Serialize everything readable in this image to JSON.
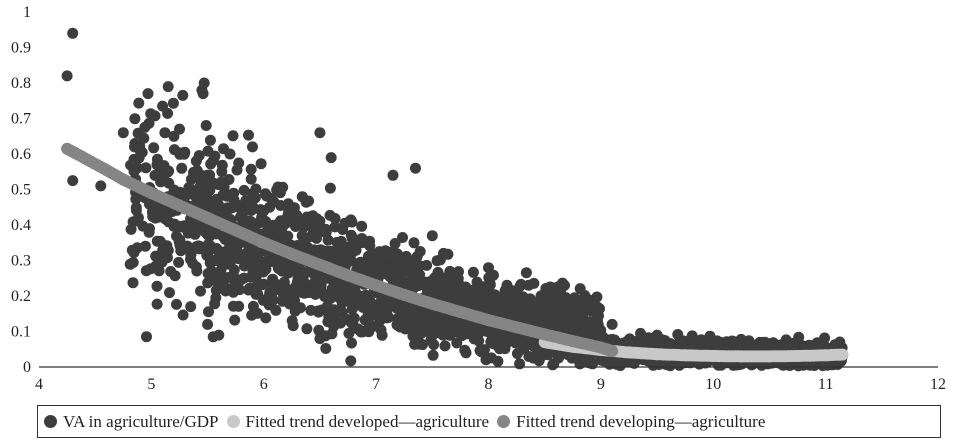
{
  "chart_data": {
    "type": "scatter",
    "title": "",
    "xlabel": "",
    "ylabel": "",
    "xlim": [
      4,
      12
    ],
    "ylim": [
      0,
      1
    ],
    "x_ticks": [
      "4",
      "5",
      "6",
      "7",
      "8",
      "9",
      "10",
      "11",
      "12"
    ],
    "y_ticks": [
      "0",
      "0.1",
      "0.2",
      "0.3",
      "0.4",
      "0.5",
      "0.6",
      "0.7",
      "0.8",
      "0.9",
      "1"
    ],
    "grid": false,
    "legend_position": "bottom",
    "colors": {
      "scatter": "#3d3d3d",
      "developed": "#c8c8c8",
      "developing": "#858585"
    },
    "series": [
      {
        "name": "VA in agriculture/GDP",
        "kind": "scatter",
        "approx_count": 2600,
        "points": [
          [
            4.25,
            0.82
          ],
          [
            4.3,
            0.94
          ],
          [
            4.3,
            0.525
          ],
          [
            4.55,
            0.51
          ],
          [
            4.75,
            0.66
          ],
          [
            4.85,
            0.62
          ],
          [
            4.9,
            0.61
          ],
          [
            4.97,
            0.77
          ],
          [
            5.05,
            0.57
          ],
          [
            5.1,
            0.735
          ],
          [
            5.12,
            0.66
          ],
          [
            5.15,
            0.79
          ],
          [
            5.2,
            0.65
          ],
          [
            5.25,
            0.67
          ],
          [
            5.28,
            0.765
          ],
          [
            5.4,
            0.58
          ],
          [
            5.45,
            0.78
          ],
          [
            5.46,
            0.77
          ],
          [
            5.47,
            0.8
          ],
          [
            5.5,
            0.54
          ],
          [
            5.55,
            0.085
          ],
          [
            5.6,
            0.09
          ],
          [
            5.35,
            0.17
          ],
          [
            5.5,
            0.12
          ],
          [
            5.7,
            0.6
          ],
          [
            5.9,
            0.62
          ],
          [
            6.5,
            0.66
          ],
          [
            6.6,
            0.59
          ],
          [
            7.35,
            0.56
          ],
          [
            7.15,
            0.54
          ],
          [
            7.5,
            0.37
          ],
          [
            7.6,
            0.32
          ],
          [
            8.0,
            0.22
          ],
          [
            8.4,
            0.18
          ],
          [
            8.7,
            0.17
          ],
          [
            9.1,
            0.12
          ],
          [
            9.5,
            0.09
          ],
          [
            10.2,
            0.07
          ],
          [
            10.5,
            0.06
          ],
          [
            11.1,
            0.03
          ],
          [
            6.5,
            0.08
          ],
          [
            7.8,
            0.04
          ],
          [
            8.8,
            0.03
          ],
          [
            9.7,
            0.01
          ],
          [
            10.8,
            0.005
          ]
        ]
      },
      {
        "name": "Fitted trend developed—agriculture",
        "kind": "fit",
        "points": [
          [
            8.5,
            0.07
          ],
          [
            8.75,
            0.057
          ],
          [
            9.0,
            0.048
          ],
          [
            9.25,
            0.041
          ],
          [
            9.5,
            0.036
          ],
          [
            9.75,
            0.033
          ],
          [
            10.0,
            0.031
          ],
          [
            10.25,
            0.03
          ],
          [
            10.5,
            0.03
          ],
          [
            10.75,
            0.031
          ],
          [
            11.0,
            0.033
          ],
          [
            11.15,
            0.035
          ]
        ]
      },
      {
        "name": "Fitted trend developing—agriculture",
        "kind": "fit",
        "points": [
          [
            4.25,
            0.615
          ],
          [
            4.32,
            0.603
          ],
          [
            4.6,
            0.555
          ],
          [
            4.75,
            0.528
          ],
          [
            5.0,
            0.49
          ],
          [
            5.25,
            0.455
          ],
          [
            5.5,
            0.42
          ],
          [
            5.75,
            0.385
          ],
          [
            6.0,
            0.35
          ],
          [
            6.25,
            0.318
          ],
          [
            6.5,
            0.288
          ],
          [
            6.75,
            0.258
          ],
          [
            7.0,
            0.23
          ],
          [
            7.25,
            0.203
          ],
          [
            7.5,
            0.178
          ],
          [
            7.75,
            0.155
          ],
          [
            8.0,
            0.132
          ],
          [
            8.25,
            0.112
          ],
          [
            8.5,
            0.092
          ],
          [
            8.75,
            0.073
          ],
          [
            9.0,
            0.055
          ],
          [
            9.1,
            0.045
          ]
        ]
      }
    ]
  }
}
